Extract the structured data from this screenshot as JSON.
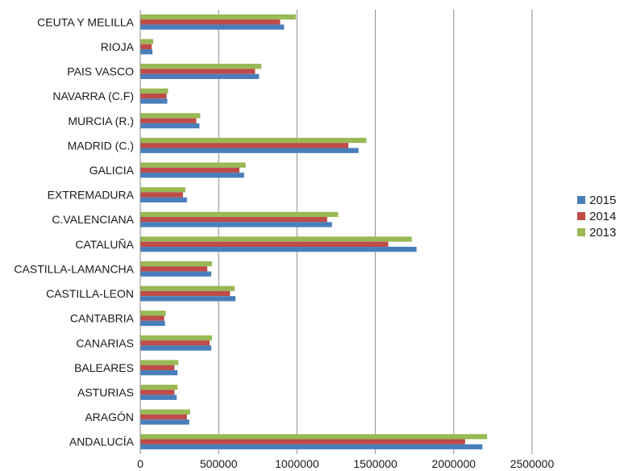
{
  "chart_data": {
    "type": "bar",
    "orientation": "horizontal",
    "categories": [
      "ANDALUCÍA",
      "ARAGÓN",
      "ASTURIAS",
      "BALEARES",
      "CANARIAS",
      "CANTABRIA",
      "CASTILLA-LEON",
      "CASTILLA-LAMANCHA",
      "CATALUÑA",
      "C.VALENCIANA",
      "EXTREMADURA",
      "GALICIA",
      "MADRID (C.)",
      "MURCIA (R.)",
      "NAVARRA (C.F)",
      "PAIS VASCO",
      "RIOJA",
      "CEUTA Y MELILLA"
    ],
    "series": [
      {
        "name": "2015",
        "color": "#4a7ebb",
        "values": [
          2180000,
          310000,
          230000,
          235000,
          450000,
          155000,
          605000,
          450000,
          1760000,
          1220000,
          295000,
          660000,
          1390000,
          375000,
          170000,
          755000,
          75000,
          915000
        ]
      },
      {
        "name": "2014",
        "color": "#be4b48",
        "values": [
          2070000,
          295000,
          215000,
          215000,
          440000,
          150000,
          570000,
          425000,
          1580000,
          1190000,
          270000,
          630000,
          1325000,
          355000,
          165000,
          730000,
          70000,
          890000
        ]
      },
      {
        "name": "2013",
        "color": "#98b954",
        "values": [
          2210000,
          315000,
          235000,
          240000,
          455000,
          160000,
          600000,
          455000,
          1730000,
          1260000,
          285000,
          670000,
          1440000,
          380000,
          175000,
          770000,
          80000,
          990000
        ]
      }
    ],
    "xlim": [
      0,
      2500000
    ],
    "ticks": [
      "0",
      "500000",
      "1000000",
      "1500000",
      "2000000",
      "2500000"
    ],
    "grid": "vertical",
    "legend_position": "right",
    "title": "",
    "xlabel": "",
    "ylabel": ""
  }
}
